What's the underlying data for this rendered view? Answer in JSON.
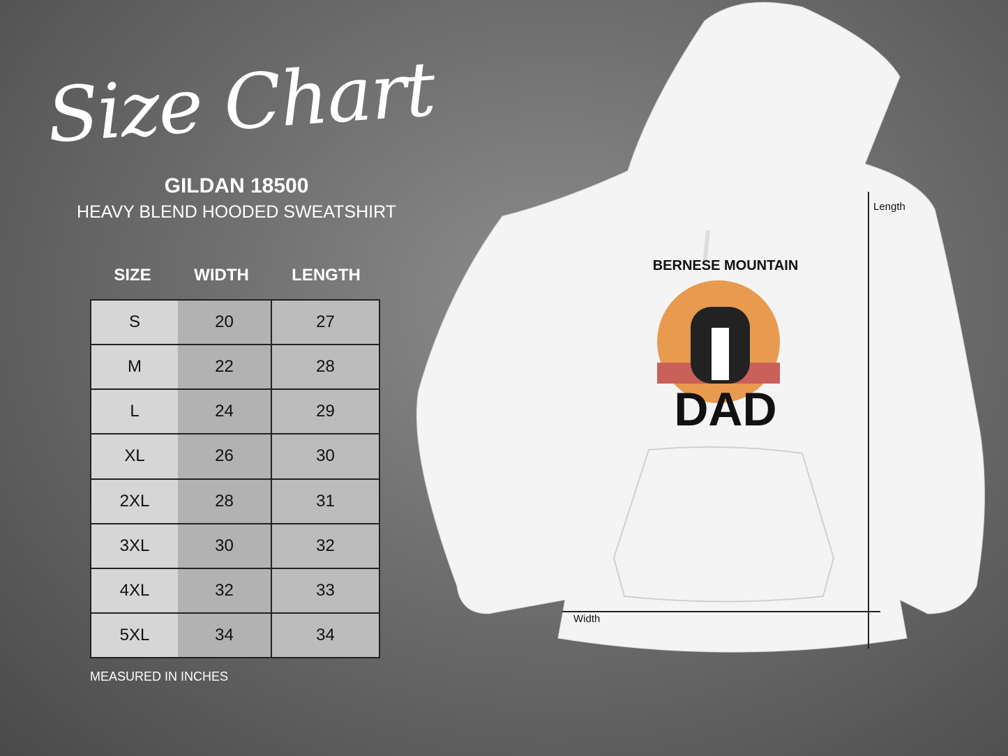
{
  "title": "Size Chart",
  "brand": "GILDAN 18500",
  "product": "HEAVY BLEND HOODED SWEATSHIRT",
  "table": {
    "headers": [
      "SIZE",
      "WIDTH",
      "LENGTH"
    ],
    "rows": [
      [
        "S",
        "20",
        "27"
      ],
      [
        "M",
        "22",
        "28"
      ],
      [
        "L",
        "24",
        "29"
      ],
      [
        "XL",
        "26",
        "30"
      ],
      [
        "2XL",
        "28",
        "31"
      ],
      [
        "3XL",
        "30",
        "32"
      ],
      [
        "4XL",
        "32",
        "33"
      ],
      [
        "5XL",
        "34",
        "34"
      ]
    ]
  },
  "note": "MEASURED IN INCHES",
  "diagram": {
    "length_label": "Length",
    "width_label": "Width"
  },
  "print": {
    "arc_text": "BERNESE MOUNTAIN",
    "big_text": "DAD"
  }
}
